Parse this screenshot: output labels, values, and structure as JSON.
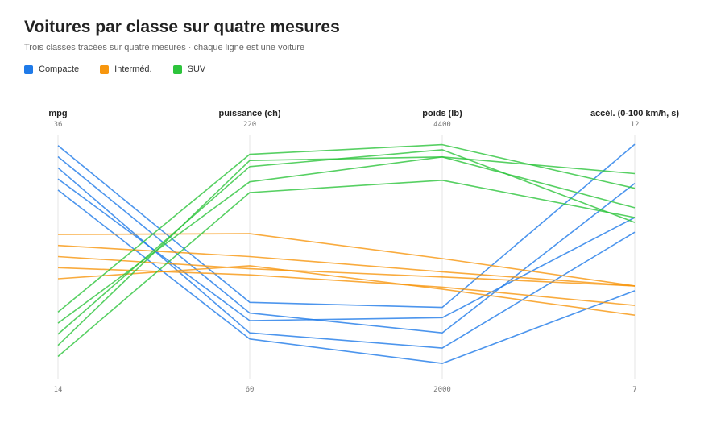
{
  "chart_data": {
    "type": "parallel-coordinates",
    "title": "Voitures par classe sur quatre mesures",
    "subtitle": "Trois classes tracées sur quatre mesures · chaque ligne est une voiture",
    "axes": [
      {
        "name": "mpg",
        "min": 14,
        "max": 36,
        "min_label": "14",
        "max_label": "36"
      },
      {
        "name": "puissance (ch)",
        "min": 60,
        "max": 220,
        "min_label": "60",
        "max_label": "220"
      },
      {
        "name": "poids (lb)",
        "min": 2000,
        "max": 4400,
        "min_label": "2000",
        "max_label": "4400"
      },
      {
        "name": "accél. (0-100 km/h, s)",
        "min": 7,
        "max": 12,
        "min_label": "7",
        "max_label": "12"
      }
    ],
    "series": [
      {
        "name": "Compacte",
        "color": "#1f7ae8",
        "lines": [
          [
            35.0,
            110,
            2700,
            11.8
          ],
          [
            34.0,
            103,
            2450,
            11.0
          ],
          [
            33.0,
            90,
            2300,
            10.0
          ],
          [
            32.0,
            98,
            2600,
            10.3
          ],
          [
            31.0,
            86,
            2150,
            8.8
          ]
        ]
      },
      {
        "name": "Interméd.",
        "color": "#f7960e",
        "lines": [
          [
            27.0,
            155,
            3180,
            8.9
          ],
          [
            26.0,
            140,
            3050,
            8.9
          ],
          [
            25.0,
            132,
            3000,
            8.9
          ],
          [
            24.0,
            128,
            2900,
            8.5
          ],
          [
            23.0,
            134,
            2880,
            8.3
          ]
        ]
      },
      {
        "name": "SUV",
        "color": "#2dc43c",
        "lines": [
          [
            20.0,
            207,
            4300,
            10.9
          ],
          [
            19.0,
            189,
            4180,
            10.5
          ],
          [
            18.0,
            199,
            4250,
            10.2
          ],
          [
            17.0,
            203,
            4180,
            11.2
          ],
          [
            16.0,
            182,
            3950,
            10.3
          ]
        ]
      }
    ]
  }
}
